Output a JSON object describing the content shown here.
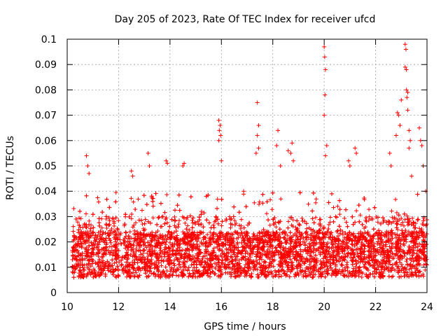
{
  "chart_data": {
    "type": "scatter",
    "title": "Day 205 of 2023, Rate Of TEC Index for receiver ufcd",
    "xlabel": "GPS time / hours",
    "ylabel": "ROTI / TECUs",
    "xlim": [
      10,
      24
    ],
    "ylim": [
      0,
      0.1
    ],
    "x_ticks": [
      10,
      12,
      14,
      16,
      18,
      20,
      22,
      24
    ],
    "y_ticks": [
      0,
      0.01,
      0.02,
      0.03,
      0.04,
      0.05,
      0.06,
      0.07,
      0.08,
      0.09,
      0.1
    ],
    "x_tick_labels": [
      "10",
      "12",
      "14",
      "16",
      "18",
      "20",
      "22",
      "24"
    ],
    "y_tick_labels": [
      "0",
      "0.01",
      "0.02",
      "0.03",
      "0.04",
      "0.05",
      "0.06",
      "0.07",
      "0.08",
      "0.09",
      "0.1"
    ],
    "grid": true,
    "marker": "+",
    "series": [
      {
        "name": "ROTI",
        "color": "#ff0000",
        "x_range": [
          10.2,
          24.0
        ],
        "typical_range": [
          0.005,
          0.025
        ],
        "description_points": [
          [
            10.75,
            0.054
          ],
          [
            10.8,
            0.05
          ],
          [
            10.85,
            0.047
          ],
          [
            12.5,
            0.048
          ],
          [
            12.55,
            0.046
          ],
          [
            13.15,
            0.055
          ],
          [
            13.2,
            0.05
          ],
          [
            13.85,
            0.052
          ],
          [
            13.9,
            0.051
          ],
          [
            14.55,
            0.051
          ],
          [
            14.5,
            0.05
          ],
          [
            15.9,
            0.068
          ],
          [
            15.95,
            0.066
          ],
          [
            15.92,
            0.064
          ],
          [
            15.97,
            0.062
          ],
          [
            15.9,
            0.06
          ],
          [
            16.0,
            0.052
          ],
          [
            17.4,
            0.075
          ],
          [
            17.45,
            0.066
          ],
          [
            17.4,
            0.062
          ],
          [
            17.45,
            0.057
          ],
          [
            17.35,
            0.055
          ],
          [
            18.2,
            0.064
          ],
          [
            18.15,
            0.058
          ],
          [
            18.3,
            0.05
          ],
          [
            18.6,
            0.056
          ],
          [
            18.75,
            0.059
          ],
          [
            18.7,
            0.055
          ],
          [
            18.8,
            0.052
          ],
          [
            20.0,
            0.097
          ],
          [
            20.02,
            0.093
          ],
          [
            20.05,
            0.088
          ],
          [
            20.03,
            0.078
          ],
          [
            20.0,
            0.07
          ],
          [
            20.1,
            0.058
          ],
          [
            20.05,
            0.054
          ],
          [
            20.95,
            0.052
          ],
          [
            21.0,
            0.05
          ],
          [
            21.2,
            0.057
          ],
          [
            21.25,
            0.055
          ],
          [
            22.55,
            0.055
          ],
          [
            22.6,
            0.05
          ],
          [
            22.85,
            0.071
          ],
          [
            22.9,
            0.07
          ],
          [
            22.95,
            0.066
          ],
          [
            22.8,
            0.062
          ],
          [
            23.0,
            0.076
          ],
          [
            23.15,
            0.098
          ],
          [
            23.18,
            0.096
          ],
          [
            23.15,
            0.089
          ],
          [
            23.2,
            0.088
          ],
          [
            23.2,
            0.08
          ],
          [
            23.25,
            0.079
          ],
          [
            23.22,
            0.077
          ],
          [
            23.25,
            0.072
          ],
          [
            23.3,
            0.064
          ],
          [
            23.35,
            0.06
          ],
          [
            23.3,
            0.057
          ],
          [
            23.7,
            0.065
          ],
          [
            23.75,
            0.06
          ],
          [
            23.8,
            0.058
          ],
          [
            23.85,
            0.05
          ],
          [
            23.95,
            0.04
          ]
        ]
      }
    ]
  }
}
